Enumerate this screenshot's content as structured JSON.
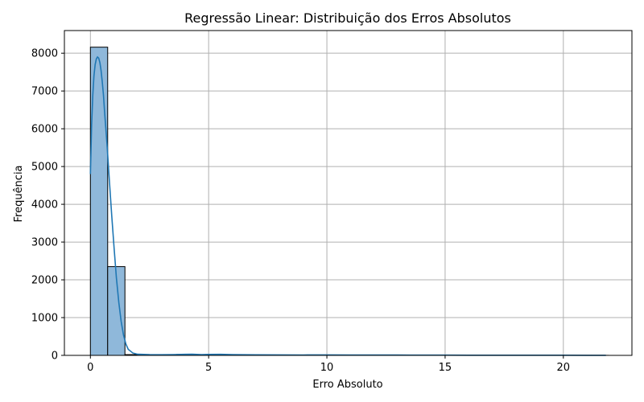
{
  "chart_data": {
    "type": "bar",
    "title": "Regressão Linear: Distribuição dos Erros Absolutos",
    "xlabel": "Erro Absoluto",
    "ylabel": "Frequência",
    "xlim": [
      -1.1,
      22.9
    ],
    "ylim": [
      0,
      8600
    ],
    "x_ticks": [
      0,
      5,
      10,
      15,
      20
    ],
    "y_ticks": [
      0,
      1000,
      2000,
      3000,
      4000,
      5000,
      6000,
      7000,
      8000
    ],
    "grid": true,
    "bins": [
      {
        "x0": 0.0,
        "x1": 0.73,
        "count": 8160
      },
      {
        "x0": 0.73,
        "x1": 1.46,
        "count": 2350
      },
      {
        "x0": 1.46,
        "x1": 2.19,
        "count": 20
      },
      {
        "x0": 2.19,
        "x1": 2.92,
        "count": 15
      },
      {
        "x0": 2.92,
        "x1": 3.65,
        "count": 15
      },
      {
        "x0": 3.65,
        "x1": 4.38,
        "count": 25
      },
      {
        "x0": 4.38,
        "x1": 5.11,
        "count": 10
      },
      {
        "x0": 5.11,
        "x1": 5.84,
        "count": 20
      },
      {
        "x0": 5.84,
        "x1": 6.57,
        "count": 10
      },
      {
        "x0": 6.57,
        "x1": 7.3,
        "count": 8
      },
      {
        "x0": 7.3,
        "x1": 8.03,
        "count": 6
      },
      {
        "x0": 8.03,
        "x1": 8.76,
        "count": 5
      },
      {
        "x0": 8.76,
        "x1": 9.49,
        "count": 4
      },
      {
        "x0": 9.49,
        "x1": 10.22,
        "count": 5
      },
      {
        "x0": 10.22,
        "x1": 10.95,
        "count": 6
      },
      {
        "x0": 10.95,
        "x1": 11.68,
        "count": 3
      },
      {
        "x0": 11.68,
        "x1": 12.41,
        "count": 3
      },
      {
        "x0": 12.41,
        "x1": 13.14,
        "count": 3
      },
      {
        "x0": 13.14,
        "x1": 13.87,
        "count": 2
      },
      {
        "x0": 13.87,
        "x1": 14.6,
        "count": 2
      },
      {
        "x0": 14.6,
        "x1": 15.33,
        "count": 2
      },
      {
        "x0": 15.33,
        "x1": 16.06,
        "count": 2
      },
      {
        "x0": 16.06,
        "x1": 16.79,
        "count": 1
      },
      {
        "x0": 16.79,
        "x1": 17.52,
        "count": 1
      },
      {
        "x0": 17.52,
        "x1": 18.25,
        "count": 1
      },
      {
        "x0": 18.25,
        "x1": 18.98,
        "count": 1
      },
      {
        "x0": 18.98,
        "x1": 19.71,
        "count": 1
      },
      {
        "x0": 19.71,
        "x1": 20.44,
        "count": 1
      },
      {
        "x0": 20.44,
        "x1": 21.17,
        "count": 1
      },
      {
        "x0": 21.17,
        "x1": 21.9,
        "count": 1
      }
    ],
    "kde": {
      "x": [
        0,
        0.05,
        0.1,
        0.15,
        0.2,
        0.25,
        0.3,
        0.35,
        0.4,
        0.45,
        0.5,
        0.55,
        0.6,
        0.7,
        0.8,
        0.9,
        1.0,
        1.1,
        1.2,
        1.3,
        1.4,
        1.5,
        1.6,
        1.8,
        2.0,
        2.5,
        3,
        3.5,
        4,
        4.3,
        4.7,
        5,
        5.5,
        6,
        7,
        8,
        9,
        10,
        11,
        12,
        13,
        14,
        15,
        16,
        17,
        18,
        19,
        20,
        21,
        21.8
      ],
      "y": [
        4800,
        6100,
        6900,
        7400,
        7700,
        7850,
        7900,
        7870,
        7750,
        7550,
        7250,
        6900,
        6450,
        5600,
        4650,
        3700,
        2850,
        2050,
        1400,
        900,
        540,
        300,
        160,
        60,
        30,
        20,
        18,
        22,
        28,
        30,
        22,
        25,
        28,
        20,
        15,
        12,
        10,
        12,
        10,
        8,
        8,
        7,
        6,
        5,
        5,
        4,
        4,
        4,
        3,
        3
      ]
    },
    "colors": {
      "bar_fill": "#8fb8da",
      "bar_edge": "#000000",
      "kde_line": "#1f77b4",
      "grid": "#b0b0b0"
    }
  }
}
